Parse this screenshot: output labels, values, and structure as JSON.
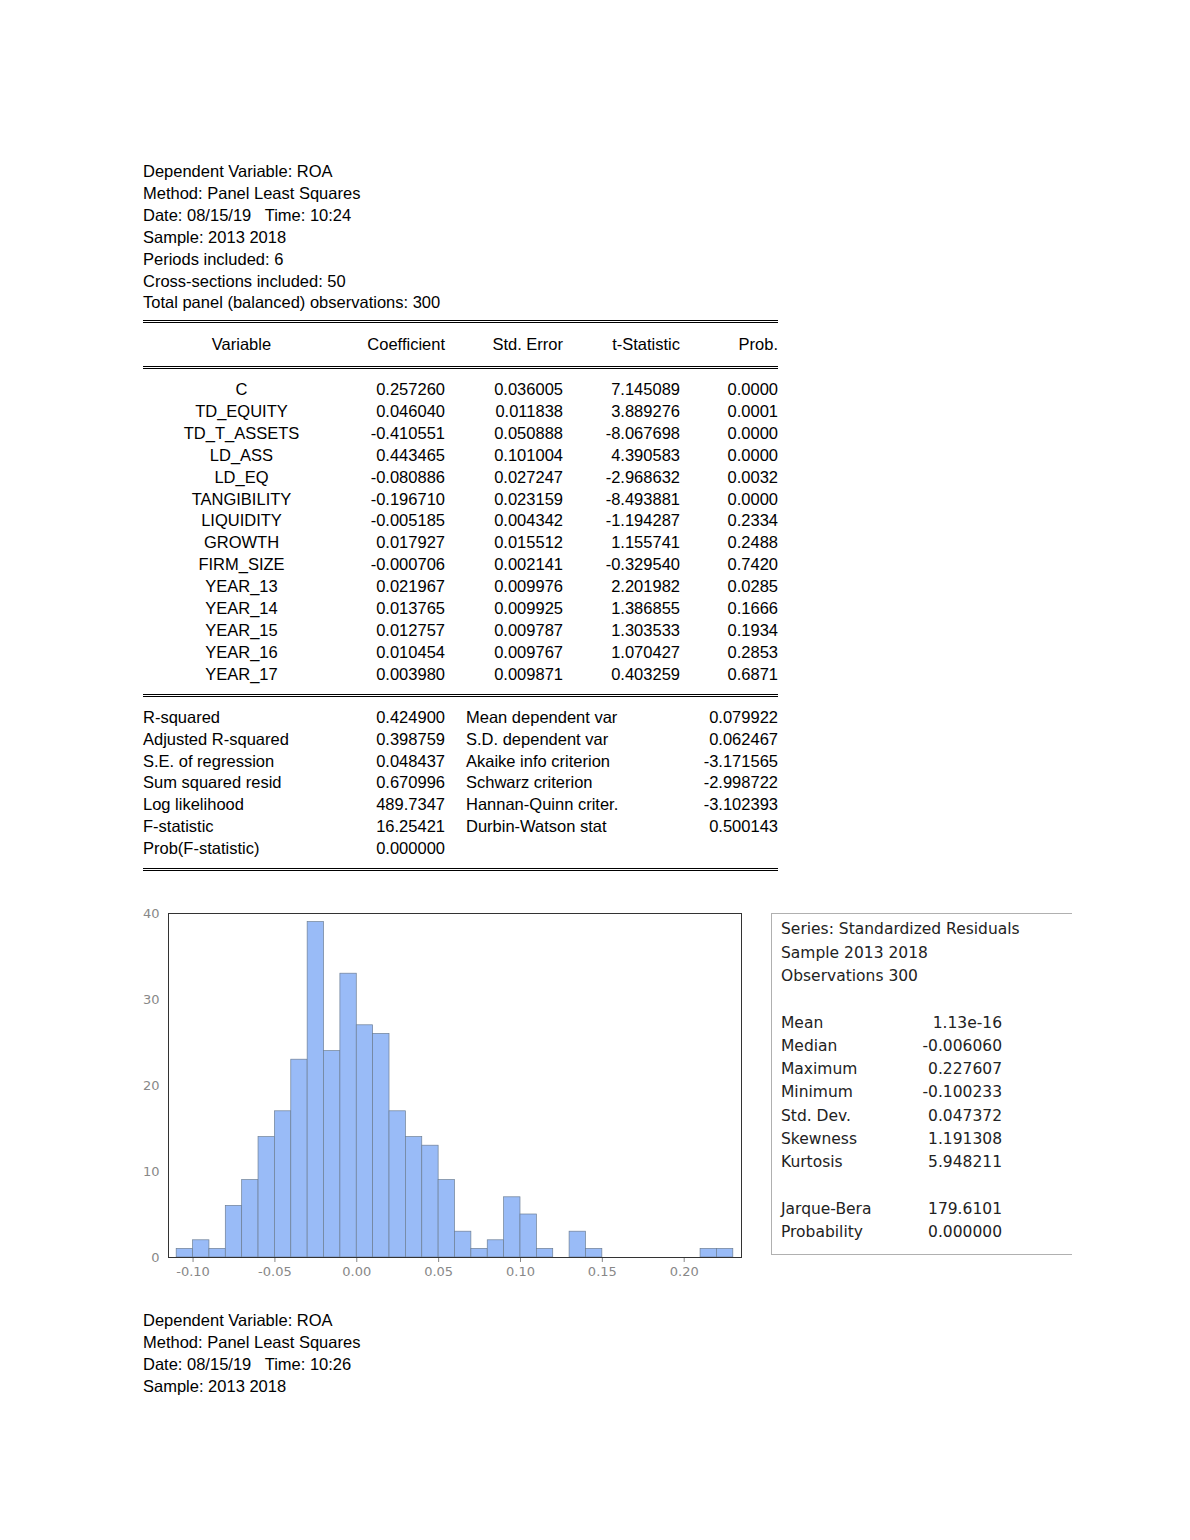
{
  "header": [
    "Dependent Variable: ROA",
    "Method: Panel Least Squares",
    "Date: 08/15/19   Time: 10:24",
    "Sample: 2013 2018",
    "Periods included: 6",
    "Cross-sections included: 50",
    "Total panel (balanced) observations: 300"
  ],
  "table": {
    "columns": [
      "Variable",
      "Coefficient",
      "Std. Error",
      "t-Statistic",
      "Prob."
    ],
    "rows": [
      [
        "C",
        "0.257260",
        "0.036005",
        "7.145089",
        "0.0000"
      ],
      [
        "TD_EQUITY",
        "0.046040",
        "0.011838",
        "3.889276",
        "0.0001"
      ],
      [
        "TD_T_ASSETS",
        "-0.410551",
        "0.050888",
        "-8.067698",
        "0.0000"
      ],
      [
        "LD_ASS",
        "0.443465",
        "0.101004",
        "4.390583",
        "0.0000"
      ],
      [
        "LD_EQ",
        "-0.080886",
        "0.027247",
        "-2.968632",
        "0.0032"
      ],
      [
        "TANGIBILITY",
        "-0.196710",
        "0.023159",
        "-8.493881",
        "0.0000"
      ],
      [
        "LIQUIDITY",
        "-0.005185",
        "0.004342",
        "-1.194287",
        "0.2334"
      ],
      [
        "GROWTH",
        "0.017927",
        "0.015512",
        "1.155741",
        "0.2488"
      ],
      [
        "FIRM_SIZE",
        "-0.000706",
        "0.002141",
        "-0.329540",
        "0.7420"
      ],
      [
        "YEAR_13",
        "0.021967",
        "0.009976",
        "2.201982",
        "0.0285"
      ],
      [
        "YEAR_14",
        "0.013765",
        "0.009925",
        "1.386855",
        "0.1666"
      ],
      [
        "YEAR_15",
        "0.012757",
        "0.009787",
        "1.303533",
        "0.1934"
      ],
      [
        "YEAR_16",
        "0.010454",
        "0.009767",
        "1.070427",
        "0.2853"
      ],
      [
        "YEAR_17",
        "0.003980",
        "0.009871",
        "0.403259",
        "0.6871"
      ]
    ]
  },
  "statistics": [
    [
      "R-squared",
      "0.424900",
      "Mean dependent var",
      "0.079922"
    ],
    [
      "Adjusted R-squared",
      "0.398759",
      "S.D. dependent var",
      "0.062467"
    ],
    [
      "S.E. of regression",
      "0.048437",
      "Akaike info criterion",
      "-3.171565"
    ],
    [
      "Sum squared resid",
      "0.670996",
      "Schwarz criterion",
      "-2.998722"
    ],
    [
      "Log likelihood",
      "489.7347",
      "Hannan-Quinn criter.",
      "-3.102393"
    ],
    [
      "F-statistic",
      "16.25421",
      "Durbin-Watson stat",
      "0.500143"
    ],
    [
      "Prob(F-statistic)",
      "0.000000"
    ]
  ],
  "chart_data": {
    "type": "histogram",
    "bins": [
      -0.11,
      -0.1,
      -0.09,
      -0.08,
      -0.07,
      -0.06,
      -0.05,
      -0.04,
      -0.03,
      -0.02,
      -0.01,
      0.0,
      0.01,
      0.02,
      0.03,
      0.04,
      0.05,
      0.06,
      0.07,
      0.08,
      0.09,
      0.1,
      0.11,
      0.12,
      0.13,
      0.14,
      0.15,
      0.16,
      0.17,
      0.18,
      0.19,
      0.2,
      0.21,
      0.22,
      0.23
    ],
    "counts": [
      1,
      2,
      1,
      6,
      9,
      14,
      17,
      23,
      39,
      24,
      33,
      27,
      26,
      17,
      14,
      13,
      9,
      3,
      1,
      2,
      7,
      5,
      1,
      0,
      3,
      1,
      0,
      0,
      0,
      0,
      0,
      0,
      1,
      1
    ],
    "color": "#99bbf7",
    "xlim": [
      -0.115,
      0.235
    ],
    "xticks": [
      {
        "value": -0.1,
        "label": "-0.10"
      },
      {
        "value": -0.05,
        "label": "-0.05"
      },
      {
        "value": 0,
        "label": "0.00"
      },
      {
        "value": 0.05,
        "label": "0.05"
      },
      {
        "value": 0.1,
        "label": "0.10"
      },
      {
        "value": 0.15,
        "label": "0.15"
      },
      {
        "value": 0.2,
        "label": "0.20"
      }
    ],
    "ylim": [
      0,
      40
    ],
    "yticks": [
      0,
      10,
      20,
      30,
      40
    ],
    "grid": false
  },
  "stats_box": {
    "title": [
      "Series: Standardized Residuals",
      "Sample 2013 2018",
      "Observations 300"
    ],
    "rows": [
      [
        "Mean",
        "1.13e-16"
      ],
      [
        "Median",
        "-0.006060"
      ],
      [
        "Maximum",
        "0.227607"
      ],
      [
        "Minimum",
        "-0.100233"
      ],
      [
        "Std. Dev.",
        "0.047372"
      ],
      [
        "Skewness",
        "1.191308"
      ],
      [
        "Kurtosis",
        "5.948211"
      ]
    ],
    "test_rows": [
      [
        "Jarque-Bera",
        "179.6101"
      ],
      [
        "Probability",
        "0.000000"
      ]
    ]
  },
  "footer": [
    "Dependent Variable: ROA",
    "Method: Panel Least Squares",
    "Date: 08/15/19   Time: 10:26",
    "Sample: 2013 2018"
  ]
}
